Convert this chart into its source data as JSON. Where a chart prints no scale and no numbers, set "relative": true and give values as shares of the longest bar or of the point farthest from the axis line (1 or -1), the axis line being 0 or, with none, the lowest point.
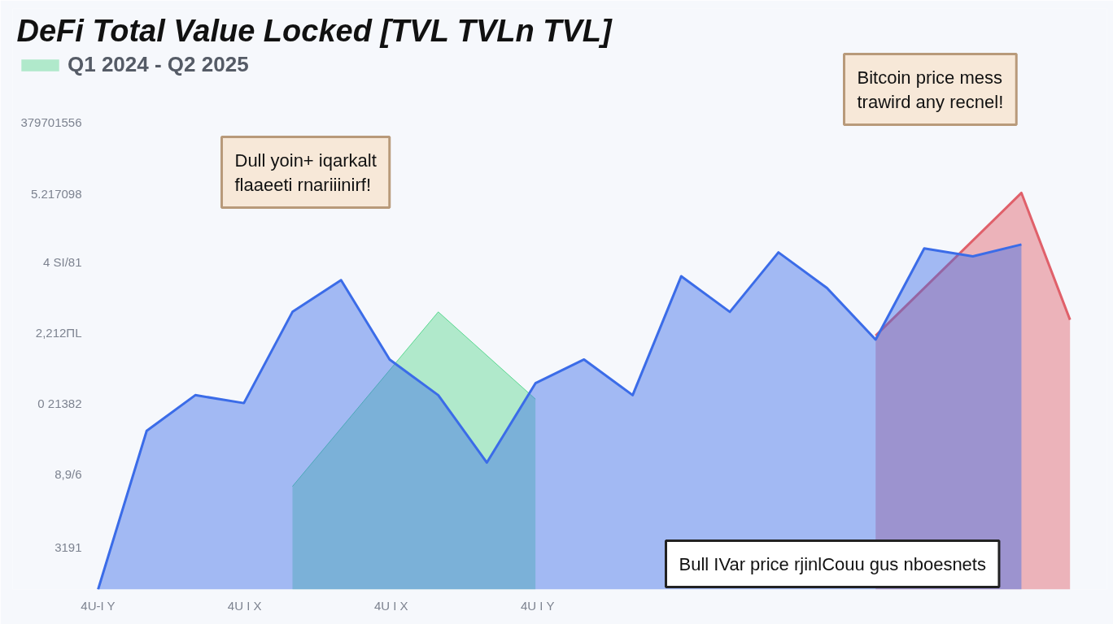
{
  "chart_data": {
    "type": "area",
    "relative": true,
    "title": "DeFi Total Value Locked [TVL TVLn TVL]",
    "categories": [
      null,
      null,
      null,
      null,
      null,
      null,
      null,
      null,
      null,
      null,
      null,
      null,
      null,
      null,
      null,
      null,
      null,
      null,
      null,
      null,
      null
    ],
    "series": [
      {
        "name": "Q1 2024 - Q2 2025",
        "color": "#5ad890",
        "values": [
          null,
          null,
          null,
          null,
          0.26,
          null,
          null,
          0.7,
          null,
          0.48,
          null,
          null,
          null,
          null,
          null,
          null,
          null,
          null,
          null,
          null,
          null
        ]
      },
      {
        "color": "#e0606a",
        "values": [
          null,
          null,
          null,
          null,
          null,
          null,
          null,
          null,
          null,
          null,
          null,
          null,
          null,
          null,
          null,
          null,
          0.64,
          null,
          null,
          1,
          0.68
        ]
      },
      {
        "color": "#3b6ce8",
        "values": [
          0,
          0.4,
          0.49,
          0.47,
          0.7,
          0.78,
          0.58,
          0.49,
          0.32,
          0.52,
          0.58,
          0.49,
          0.79,
          0.7,
          0.85,
          0.76,
          0.63,
          0.86,
          0.84,
          0.87,
          null
        ]
      }
    ],
    "legend": "top left",
    "line_style": "solid",
    "annotations": [
      "Dull yoin+ iqarkalt\nflaaeeti rnariiinirf!",
      "Bitcoin price mess\ntrawird any recnel!",
      "Bull IVar price rjinlCouu gus nboesnets",
      "379701556",
      "5.217098",
      "4 SI/81",
      "2,212ΠL",
      "0 21382",
      "8,9/6",
      "3191",
      "4U-I Y",
      "4U I X",
      "4U I X",
      "4U I Y"
    ]
  }
}
